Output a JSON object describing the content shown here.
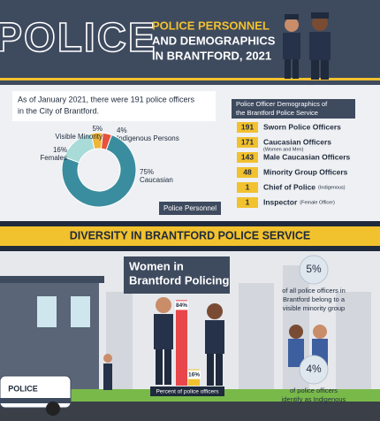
{
  "header": {
    "logo": "POLICE",
    "title": [
      "POLICE PERSONNEL",
      "AND DEMOGRAPHICS",
      "IN BRANTFORD, 2021"
    ]
  },
  "summary": [
    "As of January 2021, there were 191 police officers",
    "in the City of Brantford."
  ],
  "donut": {
    "segments": [
      {
        "label": "Indigenous Persons",
        "value": 4,
        "value_label": "4%",
        "color": "#e5533d"
      },
      {
        "label": "Caucasian",
        "value": 75,
        "value_label": "75%",
        "color": "#3a8d9e"
      },
      {
        "label": "Females",
        "value": 16,
        "value_label": "16%",
        "color": "#a9dbd8"
      },
      {
        "label": "Visible Minority",
        "value": 5,
        "value_label": "5%",
        "color": "#f0b638"
      }
    ],
    "caption": "Police Personnel"
  },
  "table": {
    "title": [
      "Police Officer Demographics of",
      "the Brantford Police Service"
    ],
    "rows": [
      {
        "value": 191,
        "label": "Sworn Police Officers"
      },
      {
        "value": 171,
        "label": "Caucasian Officers",
        "note": "(Women and Men)"
      },
      {
        "value": 143,
        "label": "Male Caucasian Officers"
      },
      {
        "value": 48,
        "label": "Minority Group Officers"
      },
      {
        "value": 1,
        "label": "Chief of Police",
        "note": "(Indigenous)"
      },
      {
        "value": 1,
        "label": "Inspector",
        "note": "(Female Officer)"
      }
    ]
  },
  "banner": "DIVERSITY IN BRANTFORD POLICE SERVICE",
  "women": {
    "title": [
      "Women in",
      "Brantford Policing"
    ],
    "bars": [
      {
        "value": 84,
        "value_label": "84%",
        "color": "#e8464a"
      },
      {
        "value": 16,
        "value_label": "16%",
        "color": "#f2c12e"
      }
    ],
    "axis_label": "Percent of police officers"
  },
  "stats": [
    {
      "value": 5,
      "value_label": "5%",
      "text": [
        "of all police officers in",
        "Brantford belong to a",
        "visible minority group"
      ]
    },
    {
      "value": 4,
      "value_label": "4%",
      "text": [
        "of police officers",
        "identify as Indigenous"
      ]
    }
  ],
  "car": "POLICE"
}
